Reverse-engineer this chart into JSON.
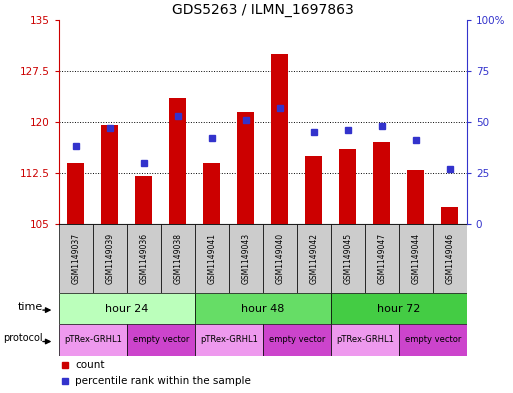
{
  "title": "GDS5263 / ILMN_1697863",
  "samples": [
    "GSM1149037",
    "GSM1149039",
    "GSM1149036",
    "GSM1149038",
    "GSM1149041",
    "GSM1149043",
    "GSM1149040",
    "GSM1149042",
    "GSM1149045",
    "GSM1149047",
    "GSM1149044",
    "GSM1149046"
  ],
  "count_values": [
    114.0,
    119.5,
    112.0,
    123.5,
    114.0,
    121.5,
    130.0,
    115.0,
    116.0,
    117.0,
    113.0,
    107.5
  ],
  "percentile_values": [
    38,
    47,
    30,
    53,
    42,
    51,
    57,
    45,
    46,
    48,
    41,
    27
  ],
  "ylim_left": [
    105,
    135
  ],
  "ylim_right": [
    0,
    100
  ],
  "yticks_left": [
    105,
    112.5,
    120,
    127.5,
    135
  ],
  "yticks_right": [
    0,
    25,
    50,
    75,
    100
  ],
  "ytick_labels_left": [
    "105",
    "112.5",
    "120",
    "127.5",
    "135"
  ],
  "ytick_labels_right": [
    "0",
    "25",
    "50",
    "75",
    "100%"
  ],
  "bar_color": "#cc0000",
  "dot_color": "#3333cc",
  "bar_bottom": 105,
  "time_groups": [
    {
      "label": "hour 24",
      "start": 0,
      "end": 4,
      "color": "#bbffbb"
    },
    {
      "label": "hour 48",
      "start": 4,
      "end": 8,
      "color": "#66dd66"
    },
    {
      "label": "hour 72",
      "start": 8,
      "end": 12,
      "color": "#44cc44"
    }
  ],
  "protocol_groups": [
    {
      "label": "pTRex-GRHL1",
      "start": 0,
      "end": 2,
      "color": "#ee99ee"
    },
    {
      "label": "empty vector",
      "start": 2,
      "end": 4,
      "color": "#cc44cc"
    },
    {
      "label": "pTRex-GRHL1",
      "start": 4,
      "end": 6,
      "color": "#ee99ee"
    },
    {
      "label": "empty vector",
      "start": 6,
      "end": 8,
      "color": "#cc44cc"
    },
    {
      "label": "pTRex-GRHL1",
      "start": 8,
      "end": 10,
      "color": "#ee99ee"
    },
    {
      "label": "empty vector",
      "start": 10,
      "end": 12,
      "color": "#cc44cc"
    }
  ],
  "bar_width": 0.5,
  "sample_box_color": "#cccccc",
  "left_color": "#cc0000",
  "right_color": "#3333cc",
  "legend_count_label": "count",
  "legend_pct_label": "percentile rank within the sample"
}
